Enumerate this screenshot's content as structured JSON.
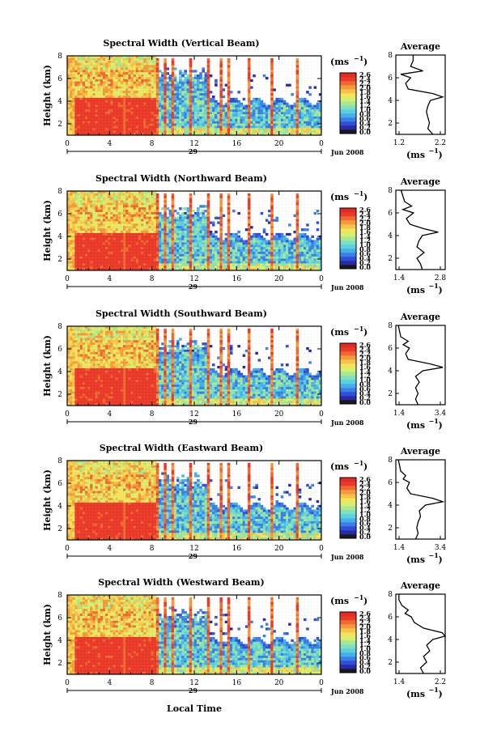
{
  "colorbar": {
    "unit_label": "(ms",
    "unit_exp": "−1",
    "colors": [
      "#1a1a1a",
      "#2a2aa8",
      "#2f4fd6",
      "#3a7fe6",
      "#46aee8",
      "#5bd0e0",
      "#7fe0c0",
      "#a8e890",
      "#d6ef70",
      "#f4e45a",
      "#f6c24a",
      "#f49a3a",
      "#ee6a30",
      "#ea3a2a",
      "#e42a24"
    ]
  },
  "shared_axes": {
    "x_ticks": [
      "0",
      "4",
      "8",
      "12",
      "16",
      "20",
      "0"
    ],
    "y_ticks": [
      "2",
      "4",
      "6",
      "8"
    ],
    "y_label": "Height (km)",
    "date_day": "29",
    "date_label": "Jun 2008",
    "x_label": "Local Time",
    "avg_title": "Average",
    "avg_xlabel": "(ms",
    "avg_xexp": "−1",
    "avg_xunit_close": ")"
  },
  "chart_data": [
    {
      "type": "heatmap",
      "title": "Spectral Width (Vertical Beam)",
      "colorbar_ticks": [
        "2.6",
        "2.4",
        "2.2",
        "2.0",
        "1.8",
        "1.6",
        "1.4",
        "1.2",
        "1.0",
        "0.8",
        "0.6",
        "0.4",
        "0.2",
        "0.0"
      ],
      "x_range_hours": [
        0,
        24
      ],
      "y_range_km": [
        1,
        8
      ],
      "profile": {
        "x_ticks": [
          "1.2",
          "2.2"
        ],
        "x_range": [
          1.2,
          2.2
        ],
        "heights": [
          1.0,
          1.5,
          2.0,
          2.5,
          3.0,
          3.5,
          4.0,
          4.3,
          4.6,
          5.0,
          5.5,
          6.0,
          6.3,
          6.6,
          7.0,
          7.5,
          8.0
        ],
        "values": [
          1.95,
          1.85,
          1.88,
          1.85,
          1.82,
          1.85,
          1.9,
          2.15,
          1.95,
          1.45,
          1.4,
          1.5,
          1.3,
          1.75,
          1.5,
          1.55,
          1.55
        ]
      }
    },
    {
      "type": "heatmap",
      "title": "Spectral Width (Northward Beam)",
      "colorbar_ticks": [
        "2.6",
        "2.4",
        "2.2",
        "2.0",
        "1.8",
        "1.6",
        "1.4",
        "1.2",
        "1.0",
        "0.8",
        "0.6",
        "0.4",
        "0.2",
        "0.0"
      ],
      "x_range_hours": [
        0,
        24
      ],
      "y_range_km": [
        1,
        8
      ],
      "profile": {
        "x_ticks": [
          "1.4",
          "2.8"
        ],
        "x_range": [
          1.4,
          2.8
        ],
        "heights": [
          1.0,
          1.5,
          2.0,
          2.5,
          3.0,
          3.5,
          4.0,
          4.3,
          4.6,
          5.0,
          5.5,
          6.0,
          6.3,
          6.6,
          7.0,
          7.5,
          8.0
        ],
        "values": [
          2.15,
          2.1,
          2.0,
          2.2,
          2.0,
          2.05,
          2.15,
          2.6,
          2.2,
          1.8,
          1.7,
          1.9,
          1.6,
          1.85,
          1.65,
          1.6,
          1.55
        ]
      }
    },
    {
      "type": "heatmap",
      "title": "Spectral Width (Southward Beam)",
      "colorbar_ticks": [
        "2.6",
        "2.4",
        "2.2",
        "2.0",
        "1.8",
        "1.6",
        "1.4",
        "1.2",
        "1.0",
        "0.8",
        "0.6",
        "0.4",
        "0.2",
        "0.0"
      ],
      "x_range_hours": [
        0,
        24
      ],
      "y_range_km": [
        1,
        8
      ],
      "profile": {
        "x_ticks": [
          "1.4",
          "3.4"
        ],
        "x_range": [
          1.4,
          3.4
        ],
        "heights": [
          1.0,
          1.5,
          2.0,
          2.5,
          3.0,
          3.5,
          4.0,
          4.3,
          4.6,
          5.0,
          5.5,
          6.0,
          6.3,
          6.6,
          7.0,
          7.5,
          8.0
        ],
        "values": [
          2.3,
          2.2,
          2.3,
          2.2,
          2.35,
          2.2,
          2.5,
          3.3,
          2.8,
          1.9,
          1.8,
          1.95,
          1.7,
          1.9,
          1.6,
          1.55,
          1.5
        ]
      }
    },
    {
      "type": "heatmap",
      "title": "Spectral Width (Eastward Beam)",
      "colorbar_ticks": [
        "2.6",
        "2.4",
        "2.2",
        "2.0",
        "1.8",
        "1.6",
        "1.4",
        "1.2",
        "1.0",
        "0.8",
        "0.6",
        "0.4",
        "0.2",
        "0.0"
      ],
      "x_range_hours": [
        0,
        24
      ],
      "y_range_km": [
        1,
        8
      ],
      "profile": {
        "x_ticks": [
          "1.4",
          "3.4"
        ],
        "x_range": [
          1.4,
          3.4
        ],
        "heights": [
          1.0,
          1.5,
          2.0,
          2.5,
          3.0,
          3.5,
          4.0,
          4.3,
          4.6,
          5.0,
          5.5,
          6.0,
          6.3,
          6.6,
          7.0,
          7.5,
          8.0
        ],
        "values": [
          2.2,
          2.3,
          2.25,
          2.3,
          2.4,
          2.35,
          2.6,
          3.3,
          2.9,
          2.0,
          1.85,
          1.95,
          1.7,
          1.8,
          1.6,
          1.55,
          1.5
        ]
      }
    },
    {
      "type": "heatmap",
      "title": "Spectral Width (Westward Beam)",
      "colorbar_ticks": [
        "2.6",
        "2.4",
        "2.2",
        "2.0",
        "1.8",
        "1.6",
        "1.4",
        "1.2",
        "1.0",
        "0.8",
        "0.6",
        "0.4",
        "0.2",
        "0.0"
      ],
      "x_range_hours": [
        0,
        24
      ],
      "y_range_km": [
        1,
        8
      ],
      "profile": {
        "x_ticks": [
          "1.4",
          "2.2"
        ],
        "x_range": [
          1.4,
          2.2
        ],
        "heights": [
          1.0,
          1.5,
          2.0,
          2.5,
          3.0,
          3.5,
          4.0,
          4.3,
          4.6,
          5.0,
          5.5,
          6.0,
          6.3,
          6.6,
          7.0,
          7.5,
          8.0
        ],
        "values": [
          1.85,
          1.8,
          1.9,
          1.85,
          1.95,
          1.9,
          2.0,
          2.2,
          2.15,
          1.85,
          1.7,
          1.65,
          1.55,
          1.6,
          1.5,
          1.45,
          1.45
        ]
      }
    }
  ]
}
